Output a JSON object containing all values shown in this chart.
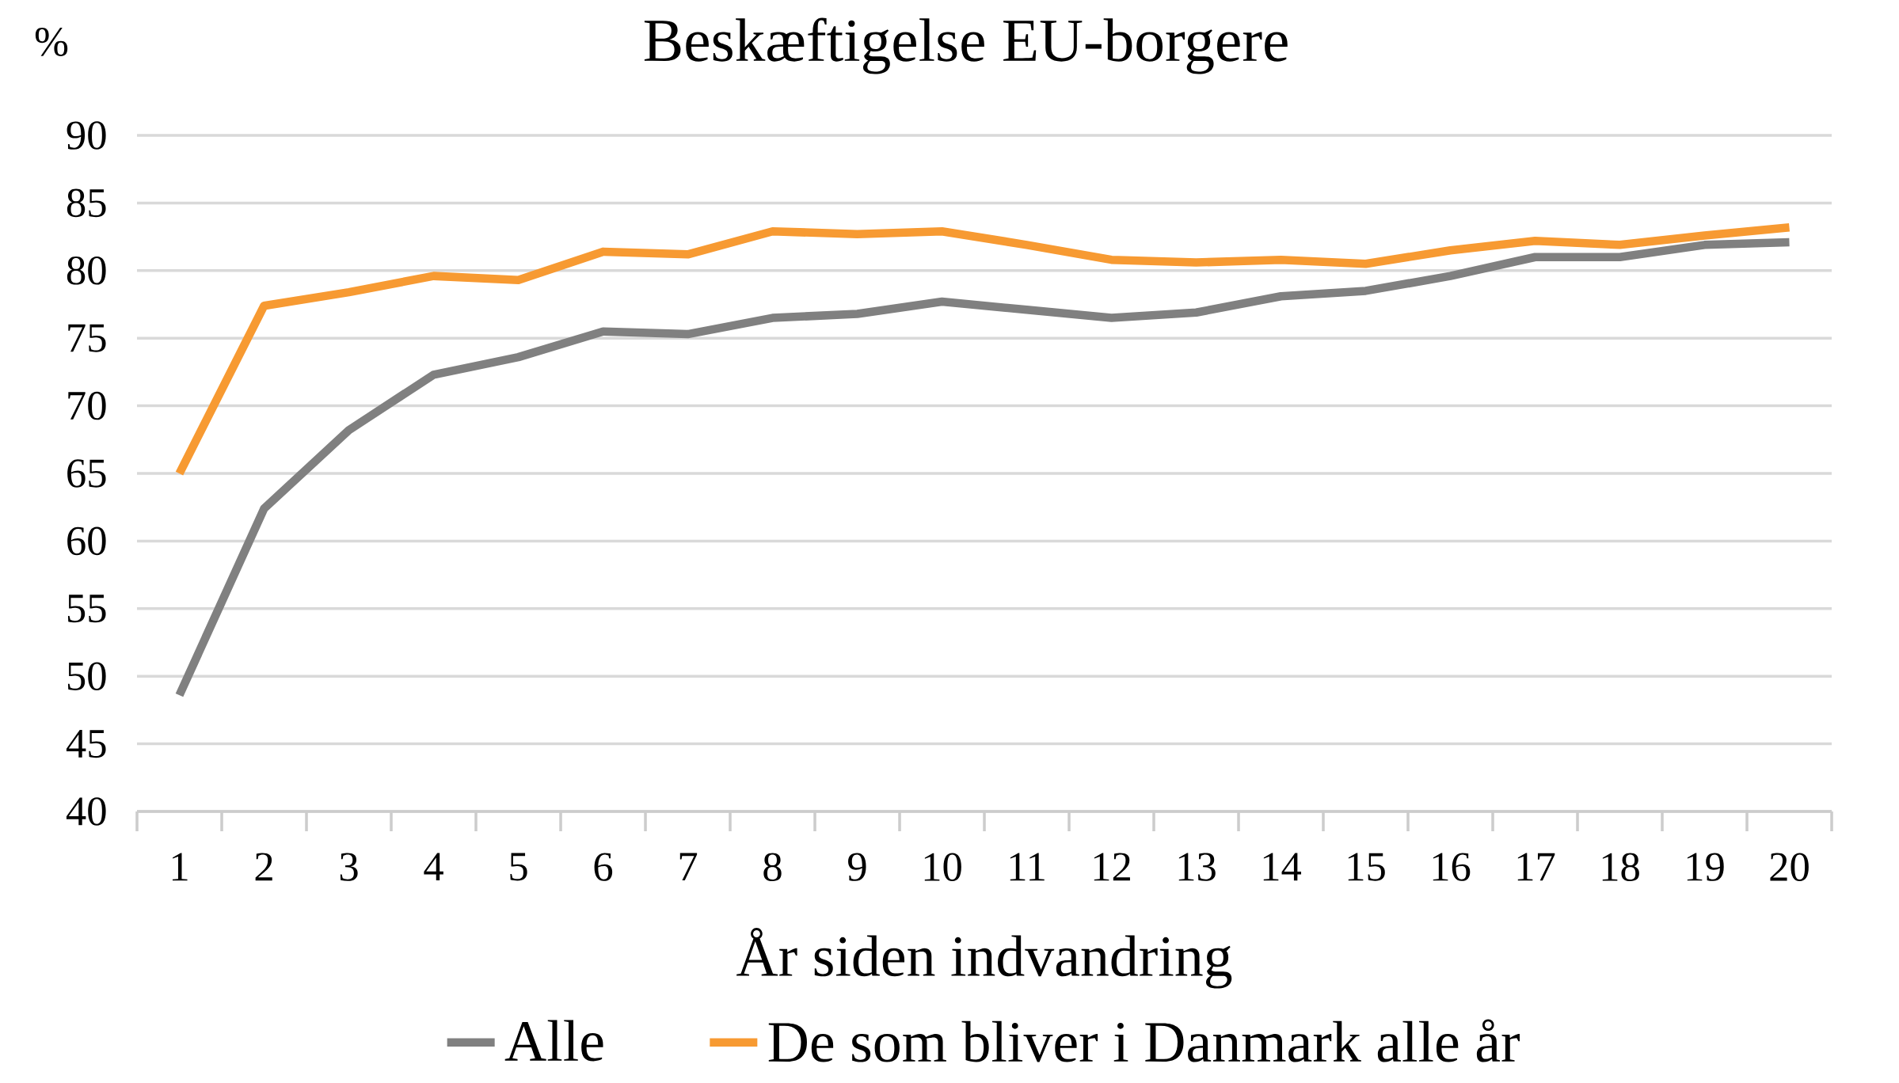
{
  "chart_data": {
    "type": "line",
    "title": "Beskæftigelse EU-borgere",
    "ylabel": "%",
    "xlabel": "År siden indvandring",
    "categories": [
      "1",
      "2",
      "3",
      "4",
      "5",
      "6",
      "7",
      "8",
      "9",
      "10",
      "11",
      "12",
      "13",
      "14",
      "15",
      "16",
      "17",
      "18",
      "19",
      "20"
    ],
    "series": [
      {
        "name": "Alle",
        "color": "#808080",
        "values": [
          48.6,
          62.4,
          68.2,
          72.3,
          73.6,
          75.5,
          75.3,
          76.5,
          76.8,
          77.7,
          77.1,
          76.5,
          76.9,
          78.1,
          78.5,
          79.6,
          81.0,
          81.0,
          81.9,
          82.1
        ]
      },
      {
        "name": "De som bliver i Danmark alle år",
        "color": "#f79a32",
        "values": [
          65.0,
          77.4,
          78.4,
          79.6,
          79.3,
          81.4,
          81.2,
          82.9,
          82.7,
          82.9,
          81.9,
          80.8,
          80.6,
          80.8,
          80.5,
          81.5,
          82.2,
          81.9,
          82.6,
          83.2
        ]
      }
    ],
    "ylim": [
      40,
      90
    ],
    "yticks": [
      40,
      45,
      50,
      55,
      60,
      65,
      70,
      75,
      80,
      85,
      90
    ],
    "grid": "y",
    "legend": "bottom",
    "marker": "none",
    "line_style": "solid"
  }
}
